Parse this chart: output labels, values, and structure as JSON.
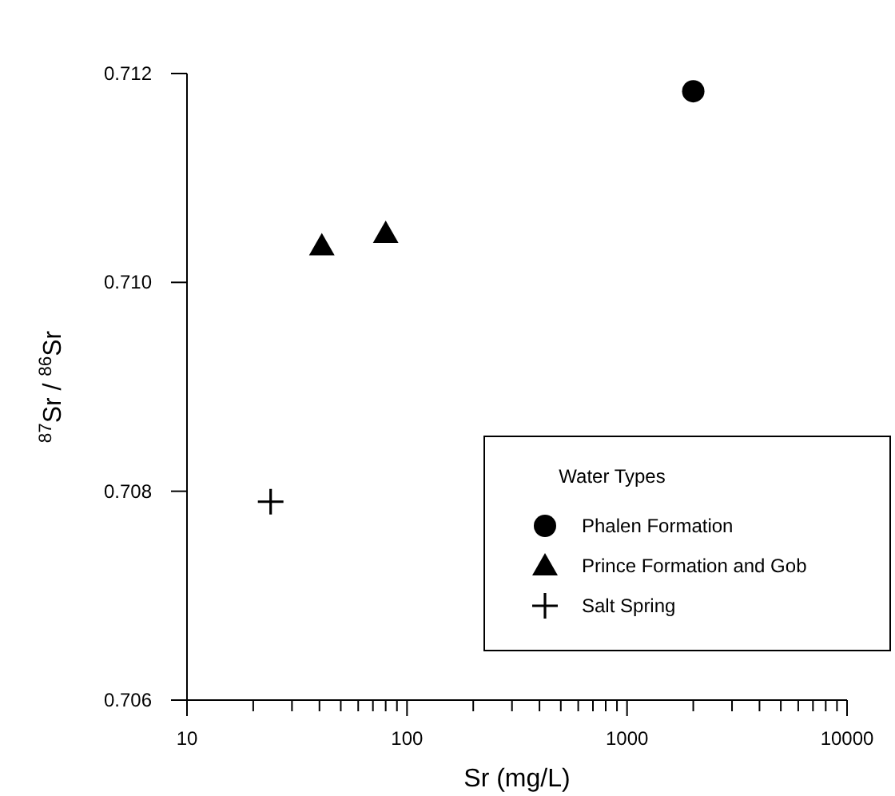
{
  "chart_data": {
    "type": "scatter",
    "xlabel": "Sr (mg/L)",
    "ylabel": "$^{87}$Sr / $^{86}$Sr",
    "legend_title": "Water Types",
    "log": "x",
    "xlim": [
      10,
      10000
    ],
    "ylim": [
      0.706,
      0.712
    ],
    "xticks": [
      10,
      {
        "value": 20,
        "label": null
      },
      {
        "value": 30,
        "label": null
      },
      {
        "value": 40,
        "label": null
      },
      {
        "value": 50,
        "label": null
      },
      {
        "value": 60,
        "label": null
      },
      {
        "value": 70,
        "label": null
      },
      {
        "value": 80,
        "label": null
      },
      {
        "value": 90,
        "label": null
      },
      100,
      {
        "value": 200,
        "label": null
      },
      {
        "value": 300,
        "label": null
      },
      {
        "value": 400,
        "label": null
      },
      {
        "value": 500,
        "label": null
      },
      {
        "value": 600,
        "label": null
      },
      {
        "value": 700,
        "label": null
      },
      {
        "value": 800,
        "label": null
      },
      {
        "value": 900,
        "label": null
      },
      1000,
      {
        "value": 2000,
        "label": null
      },
      {
        "value": 3000,
        "label": null
      },
      {
        "value": 4000,
        "label": null
      },
      {
        "value": 5000,
        "label": null
      },
      {
        "value": 6000,
        "label": null
      },
      {
        "value": 7000,
        "label": null
      },
      {
        "value": 8000,
        "label": null
      },
      {
        "value": 9000,
        "label": null
      },
      10000
    ],
    "yticks": [
      {
        "value": 0.706,
        "label": "0.706"
      },
      {
        "value": 0.708,
        "label": "0.708"
      },
      {
        "value": 0.71,
        "label": "0.710"
      },
      {
        "value": 0.712,
        "label": "0.712"
      }
    ],
    "grid": false,
    "legend": "bottom right",
    "series": [
      {
        "name": "Phalen Formation",
        "color": "#000000",
        "marker": "circle",
        "x": [
          2000
        ],
        "values": [
          0.71183
        ]
      },
      {
        "name": "Prince Formation and Gob",
        "color": "#000000",
        "marker": "triangle",
        "x": [
          41,
          80
        ],
        "values": [
          0.71035,
          0.71047
        ]
      },
      {
        "name": "Salt Spring",
        "color": "#000000",
        "marker": "cross",
        "x": [
          24
        ],
        "values": [
          0.7079
        ]
      }
    ]
  }
}
